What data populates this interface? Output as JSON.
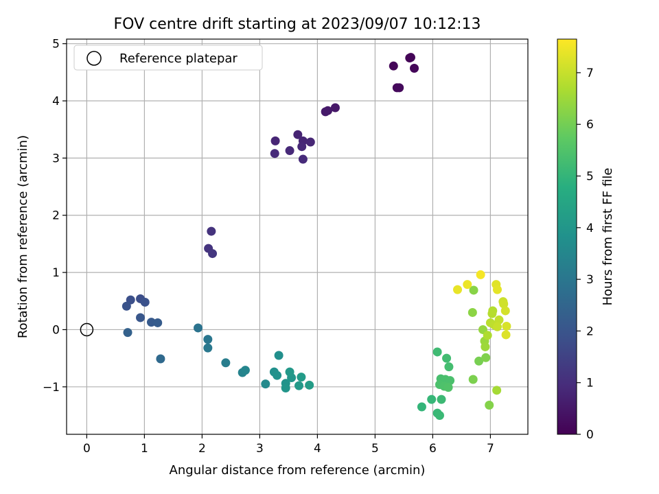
{
  "chart_data": {
    "type": "scatter",
    "title": "FOV centre drift starting at 2023/09/07 10:12:13",
    "xlabel": "Angular distance from reference (arcmin)",
    "ylabel": "Rotation from reference (arcmin)",
    "xlim": [
      -0.35,
      7.65
    ],
    "ylim": [
      -1.83,
      5.08
    ],
    "xticks": [
      0,
      1,
      2,
      3,
      4,
      5,
      6,
      7
    ],
    "yticks": [
      -1,
      0,
      1,
      2,
      3,
      4,
      5
    ],
    "xtick_labels": [
      "0",
      "1",
      "2",
      "3",
      "4",
      "5",
      "6",
      "7"
    ],
    "ytick_labels": [
      "−1",
      "0",
      "1",
      "2",
      "3",
      "4",
      "5"
    ],
    "grid": true,
    "colormap": "viridis",
    "colorbar": {
      "label": "Hours from first FF file",
      "range": [
        0,
        7.65
      ],
      "ticks": [
        0,
        1,
        2,
        3,
        4,
        5,
        6,
        7
      ],
      "tick_labels": [
        "0",
        "1",
        "2",
        "3",
        "4",
        "5",
        "6",
        "7"
      ]
    },
    "legend": {
      "position": "top-left",
      "entries": [
        "Reference platepar"
      ]
    },
    "reference_point": {
      "x": 0,
      "y": 0
    },
    "points": [
      {
        "x": 5.6,
        "y": 4.75,
        "c": 0.05
      },
      {
        "x": 5.62,
        "y": 4.76,
        "c": 0.08
      },
      {
        "x": 5.32,
        "y": 4.61,
        "c": 0.1
      },
      {
        "x": 5.68,
        "y": 4.57,
        "c": 0.12
      },
      {
        "x": 5.38,
        "y": 4.23,
        "c": 0.18
      },
      {
        "x": 5.42,
        "y": 4.23,
        "c": 0.2
      },
      {
        "x": 4.31,
        "y": 3.88,
        "c": 0.5
      },
      {
        "x": 4.18,
        "y": 3.83,
        "c": 0.52
      },
      {
        "x": 4.14,
        "y": 3.81,
        "c": 0.55
      },
      {
        "x": 3.66,
        "y": 3.41,
        "c": 0.75
      },
      {
        "x": 3.75,
        "y": 3.3,
        "c": 0.78
      },
      {
        "x": 3.27,
        "y": 3.3,
        "c": 0.8
      },
      {
        "x": 3.88,
        "y": 3.28,
        "c": 0.82
      },
      {
        "x": 3.73,
        "y": 3.2,
        "c": 0.85
      },
      {
        "x": 3.52,
        "y": 3.13,
        "c": 0.88
      },
      {
        "x": 3.26,
        "y": 3.08,
        "c": 0.9
      },
      {
        "x": 3.75,
        "y": 2.98,
        "c": 0.92
      },
      {
        "x": 2.16,
        "y": 1.72,
        "c": 1.1
      },
      {
        "x": 2.11,
        "y": 1.42,
        "c": 1.15
      },
      {
        "x": 2.18,
        "y": 1.33,
        "c": 1.2
      },
      {
        "x": 0.93,
        "y": 0.54,
        "c": 1.8
      },
      {
        "x": 0.76,
        "y": 0.52,
        "c": 1.85
      },
      {
        "x": 1.01,
        "y": 0.48,
        "c": 1.9
      },
      {
        "x": 0.69,
        "y": 0.41,
        "c": 1.95
      },
      {
        "x": 0.93,
        "y": 0.21,
        "c": 2.05
      },
      {
        "x": 1.12,
        "y": 0.13,
        "c": 2.15
      },
      {
        "x": 1.23,
        "y": 0.12,
        "c": 2.2
      },
      {
        "x": 0.71,
        "y": -0.05,
        "c": 2.35
      },
      {
        "x": 1.28,
        "y": -0.51,
        "c": 2.6
      },
      {
        "x": 1.93,
        "y": 0.03,
        "c": 2.9
      },
      {
        "x": 2.1,
        "y": -0.17,
        "c": 3.0
      },
      {
        "x": 2.1,
        "y": -0.32,
        "c": 3.05
      },
      {
        "x": 2.41,
        "y": -0.58,
        "c": 3.2
      },
      {
        "x": 2.7,
        "y": -0.75,
        "c": 3.4
      },
      {
        "x": 2.75,
        "y": -0.71,
        "c": 3.45
      },
      {
        "x": 3.1,
        "y": -0.95,
        "c": 3.6
      },
      {
        "x": 3.33,
        "y": -0.45,
        "c": 3.75
      },
      {
        "x": 3.25,
        "y": -0.74,
        "c": 3.8
      },
      {
        "x": 3.3,
        "y": -0.8,
        "c": 3.85
      },
      {
        "x": 3.45,
        "y": -0.94,
        "c": 3.9
      },
      {
        "x": 3.45,
        "y": -1.02,
        "c": 3.95
      },
      {
        "x": 3.55,
        "y": -0.84,
        "c": 4.0
      },
      {
        "x": 3.52,
        "y": -0.74,
        "c": 4.05
      },
      {
        "x": 3.68,
        "y": -0.98,
        "c": 4.1
      },
      {
        "x": 3.72,
        "y": -0.83,
        "c": 4.15
      },
      {
        "x": 3.86,
        "y": -0.97,
        "c": 4.2
      },
      {
        "x": 5.81,
        "y": -1.35,
        "c": 5.0
      },
      {
        "x": 5.98,
        "y": -1.22,
        "c": 5.05
      },
      {
        "x": 6.08,
        "y": -1.46,
        "c": 5.1
      },
      {
        "x": 6.12,
        "y": -1.5,
        "c": 5.12
      },
      {
        "x": 6.15,
        "y": -1.22,
        "c": 5.15
      },
      {
        "x": 6.08,
        "y": -0.39,
        "c": 5.2
      },
      {
        "x": 6.24,
        "y": -0.5,
        "c": 5.25
      },
      {
        "x": 6.28,
        "y": -0.65,
        "c": 5.3
      },
      {
        "x": 6.14,
        "y": -0.86,
        "c": 5.35
      },
      {
        "x": 6.22,
        "y": -0.87,
        "c": 5.38
      },
      {
        "x": 6.3,
        "y": -0.89,
        "c": 5.4
      },
      {
        "x": 6.12,
        "y": -0.96,
        "c": 5.42
      },
      {
        "x": 6.2,
        "y": -0.99,
        "c": 5.45
      },
      {
        "x": 6.27,
        "y": -1.01,
        "c": 5.5
      },
      {
        "x": 6.8,
        "y": -0.55,
        "c": 6.05
      },
      {
        "x": 6.7,
        "y": -0.87,
        "c": 6.1
      },
      {
        "x": 6.92,
        "y": -0.49,
        "c": 6.15
      },
      {
        "x": 6.98,
        "y": -1.32,
        "c": 6.2
      },
      {
        "x": 6.71,
        "y": 0.69,
        "c": 6.25
      },
      {
        "x": 6.69,
        "y": 0.3,
        "c": 6.3
      },
      {
        "x": 6.87,
        "y": 0.0,
        "c": 6.4
      },
      {
        "x": 6.9,
        "y": -0.2,
        "c": 6.45
      },
      {
        "x": 6.91,
        "y": -0.3,
        "c": 6.5
      },
      {
        "x": 7.11,
        "y": -1.06,
        "c": 6.6
      },
      {
        "x": 6.95,
        "y": -0.1,
        "c": 6.7
      },
      {
        "x": 7.04,
        "y": 0.33,
        "c": 6.75
      },
      {
        "x": 7.03,
        "y": 0.28,
        "c": 6.8
      },
      {
        "x": 7.0,
        "y": 0.12,
        "c": 6.85
      },
      {
        "x": 7.07,
        "y": 0.08,
        "c": 6.9
      },
      {
        "x": 7.15,
        "y": 0.17,
        "c": 6.95
      },
      {
        "x": 7.12,
        "y": 0.05,
        "c": 7.0
      },
      {
        "x": 7.22,
        "y": 0.49,
        "c": 7.05
      },
      {
        "x": 7.23,
        "y": 0.45,
        "c": 7.1
      },
      {
        "x": 7.26,
        "y": 0.33,
        "c": 7.15
      },
      {
        "x": 7.28,
        "y": 0.06,
        "c": 7.2
      },
      {
        "x": 7.27,
        "y": -0.09,
        "c": 7.25
      },
      {
        "x": 7.1,
        "y": 0.79,
        "c": 7.3
      },
      {
        "x": 7.12,
        "y": 0.7,
        "c": 7.35
      },
      {
        "x": 6.43,
        "y": 0.7,
        "c": 7.4
      },
      {
        "x": 6.6,
        "y": 0.79,
        "c": 7.45
      },
      {
        "x": 6.83,
        "y": 0.96,
        "c": 7.55
      }
    ]
  }
}
